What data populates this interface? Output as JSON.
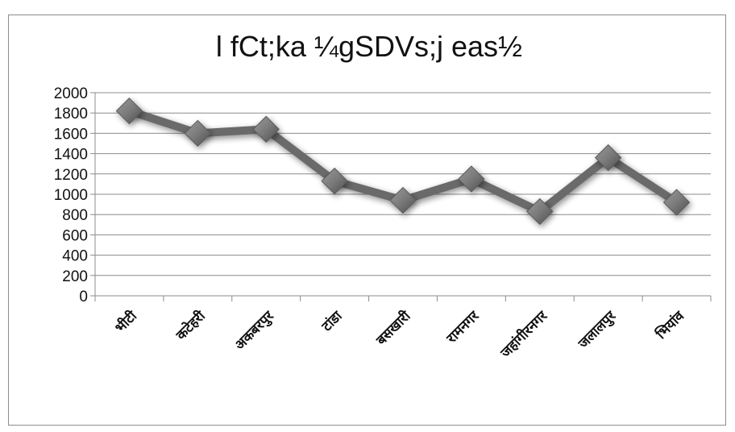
{
  "chart_data": {
    "type": "line",
    "title": "l fCt;ka ¼gSDVs;j eas½",
    "xlabel": "",
    "ylabel": "",
    "categories": [
      "भीटी",
      "कटेहरी",
      "अकबरपुर",
      "टांडा",
      "बसखारी",
      "रामनगर",
      "जहांगीरनगर",
      "जलालपुर",
      "भियांव"
    ],
    "series": [
      {
        "values": [
          1820,
          1600,
          1640,
          1130,
          940,
          1150,
          830,
          1360,
          920
        ]
      }
    ],
    "ylim": [
      0,
      2000
    ],
    "yticks": [
      0,
      200,
      400,
      600,
      800,
      1000,
      1200,
      1400,
      1600,
      1800,
      2000
    ],
    "grid": true,
    "legend": "none",
    "colors": {
      "line": "#6b6b6b",
      "marker": "#7a7a7a",
      "grid": "#8c8c8c",
      "axis": "#8c8c8c"
    }
  }
}
